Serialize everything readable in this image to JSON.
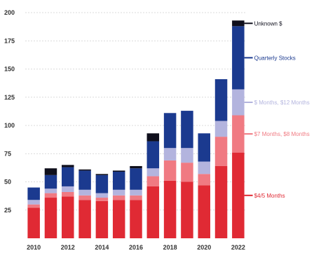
{
  "chart_data": {
    "type": "bar",
    "stacked": true,
    "grid": true,
    "legend_placement": "right, inline labels",
    "categories": [
      "2010",
      "2011",
      "2012",
      "2013",
      "2014",
      "2015",
      "2016",
      "2017",
      "2018",
      "2019",
      "2020",
      "2021",
      "2022"
    ],
    "x_tick_labels": [
      "2010",
      "2012",
      "2014",
      "2016",
      "2018",
      "2020",
      "2022"
    ],
    "y_tick_labels": [
      "200",
      "175",
      "150",
      "125",
      "100",
      "75",
      "50",
      "25"
    ],
    "ylim": [
      0,
      200
    ],
    "series": [
      {
        "name": "$4/5 Months",
        "color": "#e02a34",
        "values": [
          27,
          36,
          37,
          34,
          33,
          34,
          34,
          46,
          51,
          50,
          47,
          64,
          76
        ]
      },
      {
        "name": "$7 Months, $8 Months",
        "color": "#f07a82",
        "values": [
          3,
          4,
          4,
          4,
          3,
          4,
          4,
          9,
          18,
          17,
          10,
          26,
          33
        ]
      },
      {
        "name": "$ Months, $12 Months",
        "color": "#b3b4de",
        "values": [
          4,
          4,
          5,
          5,
          4,
          5,
          5,
          7,
          11,
          13,
          11,
          14,
          23
        ]
      },
      {
        "name": "Quarterly Stocks",
        "color": "#1b3a8f",
        "values": [
          11,
          12,
          17,
          17,
          16,
          16,
          19,
          24,
          31,
          33,
          25,
          37,
          56
        ]
      },
      {
        "name": "Unknown $",
        "color": "#0f0f1c",
        "values": [
          0,
          6,
          2,
          1,
          1,
          1,
          2,
          7,
          0,
          0,
          0,
          0,
          5
        ]
      }
    ]
  }
}
